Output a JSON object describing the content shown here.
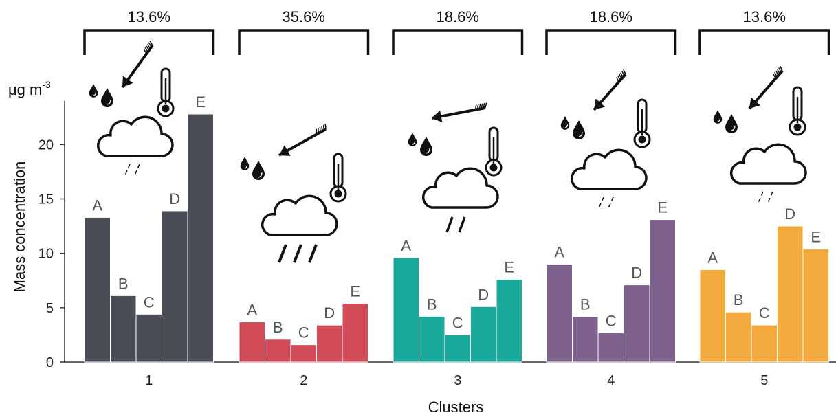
{
  "chart_data": {
    "type": "bar",
    "xlabel": "Clusters",
    "ylabel": "Mass concentration",
    "unit": "μg m",
    "unit_exponent": "-3",
    "ylim": [
      0,
      24
    ],
    "yticks": [
      "0",
      "5",
      "10",
      "15",
      "20"
    ],
    "grid": false,
    "legend": "none",
    "groups": [
      {
        "name": "1",
        "percent": "13.6%",
        "color": "#4a4d55",
        "rain": "light",
        "bars": [
          {
            "label": "A",
            "value": 13.3
          },
          {
            "label": "B",
            "value": 6.1
          },
          {
            "label": "C",
            "value": 4.4
          },
          {
            "label": "D",
            "value": 13.9
          },
          {
            "label": "E",
            "value": 22.8
          }
        ]
      },
      {
        "name": "2",
        "percent": "35.6%",
        "color": "#d04a58",
        "rain": "heavy",
        "bars": [
          {
            "label": "A",
            "value": 3.7
          },
          {
            "label": "B",
            "value": 2.1
          },
          {
            "label": "C",
            "value": 1.6
          },
          {
            "label": "D",
            "value": 3.4
          },
          {
            "label": "E",
            "value": 5.4
          }
        ]
      },
      {
        "name": "3",
        "percent": "18.6%",
        "color": "#18a99b",
        "rain": "medium",
        "bars": [
          {
            "label": "A",
            "value": 9.6
          },
          {
            "label": "B",
            "value": 4.2
          },
          {
            "label": "C",
            "value": 2.5
          },
          {
            "label": "D",
            "value": 5.1
          },
          {
            "label": "E",
            "value": 7.6
          }
        ]
      },
      {
        "name": "4",
        "percent": "18.6%",
        "color": "#7f618e",
        "rain": "light",
        "bars": [
          {
            "label": "A",
            "value": 9.0
          },
          {
            "label": "B",
            "value": 4.2
          },
          {
            "label": "C",
            "value": 2.7
          },
          {
            "label": "D",
            "value": 7.1
          },
          {
            "label": "E",
            "value": 13.1
          }
        ]
      },
      {
        "name": "5",
        "percent": "13.6%",
        "color": "#f2aa3e",
        "rain": "light",
        "bars": [
          {
            "label": "A",
            "value": 8.5
          },
          {
            "label": "B",
            "value": 4.6
          },
          {
            "label": "C",
            "value": 3.4
          },
          {
            "label": "D",
            "value": 12.5
          },
          {
            "label": "E",
            "value": 10.4
          }
        ]
      }
    ]
  },
  "icons": [
    "wind-arrow-icon",
    "raindrops-icon",
    "thermometer-icon",
    "rain-cloud-icon"
  ]
}
